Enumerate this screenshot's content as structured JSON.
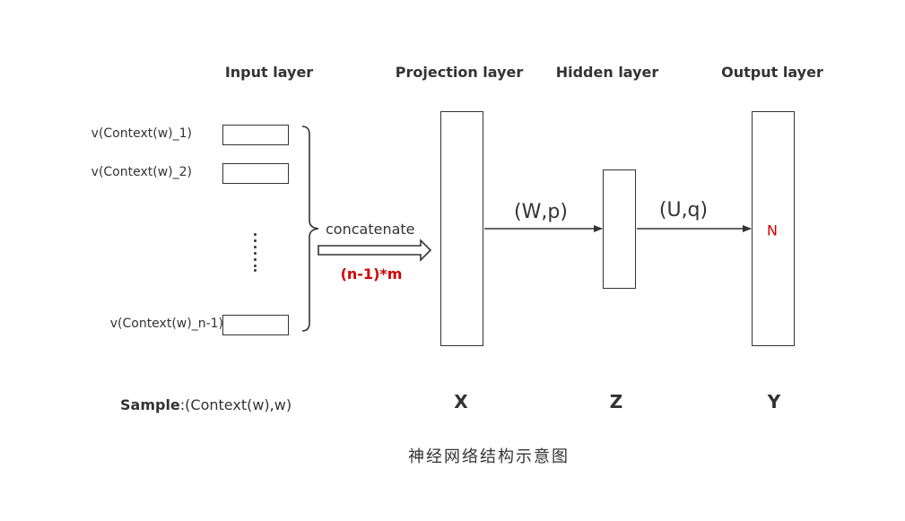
{
  "layers": {
    "input_title": "Input layer",
    "projection_title": "Projection layer",
    "hidden_title": "Hidden layer",
    "output_title": "Output layer"
  },
  "inputs": [
    "v(Context(w)_1)",
    "v(Context(w)_2)",
    "v(Context(w)_n-1)"
  ],
  "concat": {
    "label": "concatenate",
    "dimension": "(n-1)*m"
  },
  "edges": {
    "projection_to_hidden": "(W,p)",
    "hidden_to_output": "(U,q)"
  },
  "variables": {
    "projection": "X",
    "hidden": "Z",
    "output": "Y"
  },
  "output_node": "N",
  "sample": {
    "bold": "Sample",
    "rest": ":(Context(w),w)"
  },
  "caption": "神经网络结构示意图",
  "colors": {
    "accent_red": "#d40000",
    "stroke": "#333333"
  }
}
